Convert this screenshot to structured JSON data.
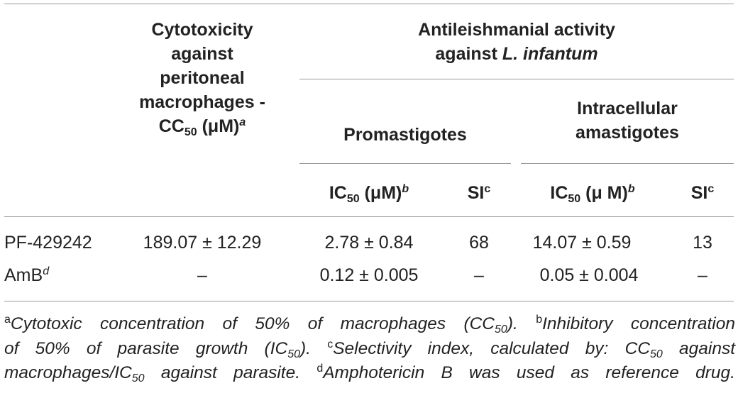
{
  "headers": {
    "cytotoxicity": {
      "line1": "Cytotoxicity",
      "line2": "against",
      "line3": "peritoneal",
      "line4": "macrophages -",
      "cc": "CC",
      "cc_sub": "50",
      "cc_unit": " (μM)",
      "cc_sup": "a"
    },
    "antileish": {
      "line1": "Antileishmanial activity",
      "line2_pre": "against ",
      "line2_it": "L. infantum"
    },
    "promastigotes": "Promastigotes",
    "intracellular": {
      "line1": "Intracellular",
      "line2": "amastigotes"
    },
    "ic_pro": {
      "pre": "IC",
      "sub": "50",
      "unit": " (μM)",
      "sup": "b"
    },
    "si_pro": {
      "pre": "SI",
      "sup": "c"
    },
    "ic_intra": {
      "pre": "IC",
      "sub": "50",
      "unit": " (μ M)",
      "sup": "b"
    },
    "si_intra": {
      "pre": "SI",
      "sup": "c"
    }
  },
  "rows": [
    {
      "name": "PF-429242",
      "name_sup": "",
      "cc50": "189.07 ± 12.29",
      "pro_ic50": "2.78 ± 0.84",
      "pro_si": "68",
      "intra_ic50": "14.07 ± 0.59",
      "intra_si": "13"
    },
    {
      "name": "AmB",
      "name_sup": "d",
      "cc50": "–",
      "pro_ic50": "0.12 ± 0.005",
      "pro_si": "–",
      "intra_ic50": "0.05 ± 0.004",
      "intra_si": "–"
    }
  ],
  "footnotes": {
    "a_mark": "a",
    "a_text_1": "Cytotoxic concentration of 50% of macrophages (CC",
    "a_sub": "50",
    "a_text_2": ").",
    "b_mark": "b",
    "b_text_1": "Inhibitory concentration",
    "b_text_2": "of 50% of parasite growth (IC",
    "b_sub": "50",
    "b_text_3": ").",
    "c_mark": "c",
    "c_text_1": "Selectivity index, calculated by: CC",
    "c_sub1": "50",
    "c_text_2": " against",
    "c_text_3": "macrophages/IC",
    "c_sub2": "50",
    "c_text_4": " against parasite.",
    "d_mark": "d",
    "d_text": "Amphotericin B was used as reference drug."
  }
}
